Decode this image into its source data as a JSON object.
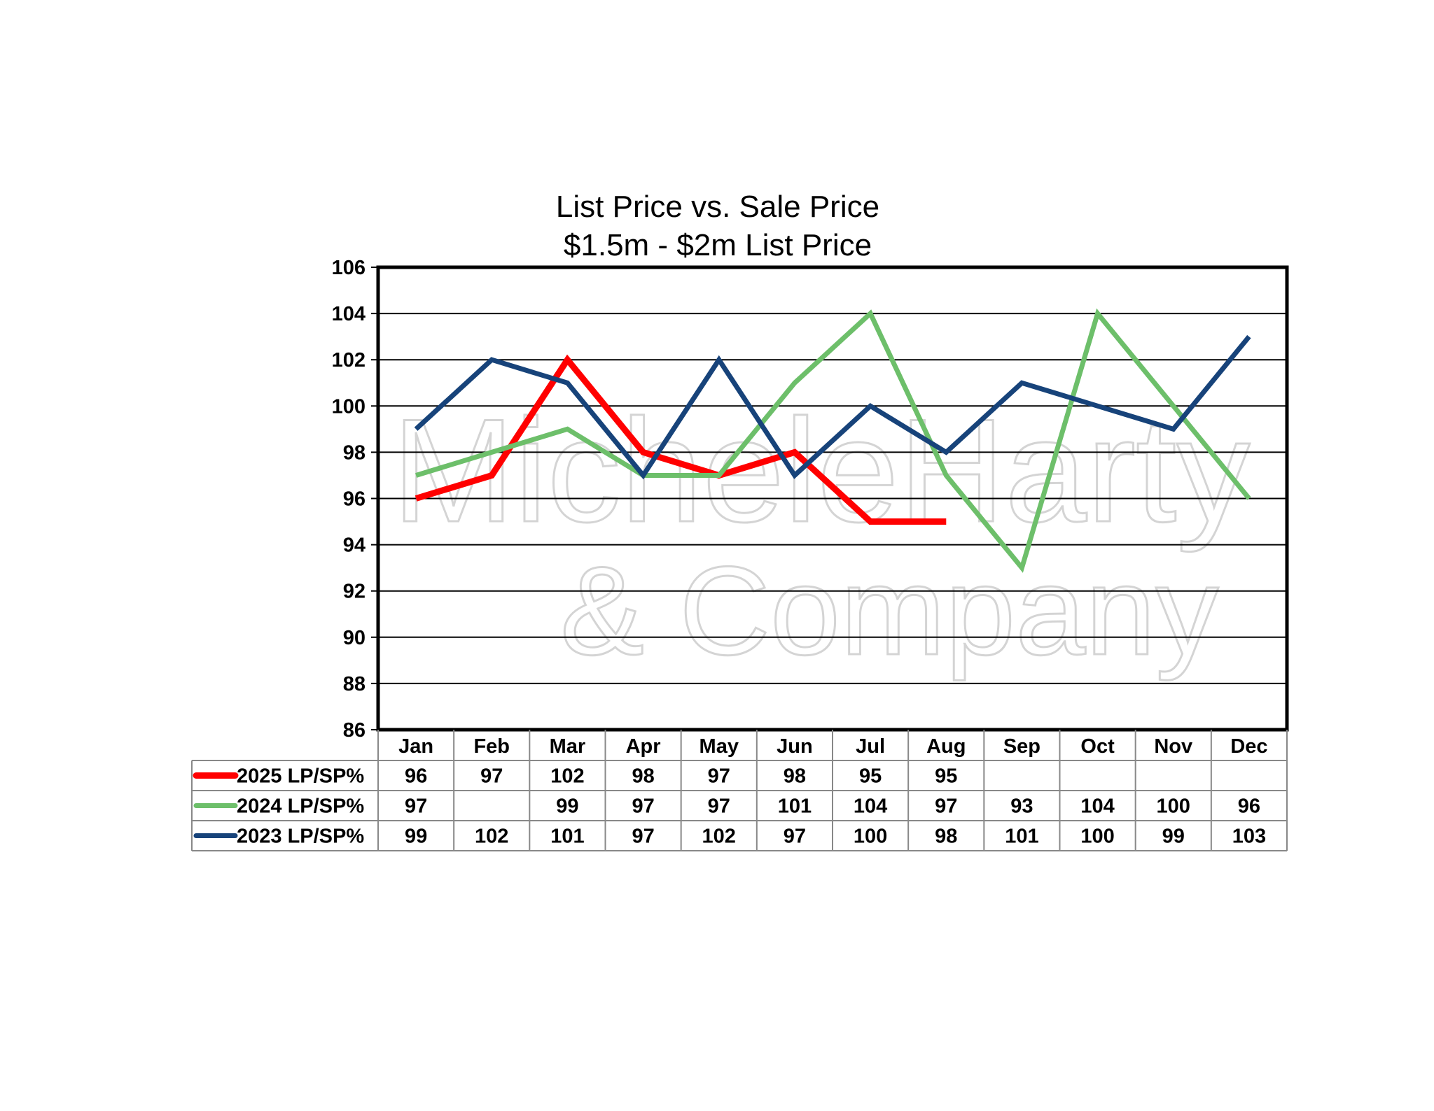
{
  "chart_data": {
    "type": "line",
    "title": "List Price vs. Sale Price",
    "subtitle": "$1.5m - $2m List Price",
    "categories": [
      "Jan",
      "Feb",
      "Mar",
      "Apr",
      "May",
      "Jun",
      "Jul",
      "Aug",
      "Sep",
      "Oct",
      "Nov",
      "Dec"
    ],
    "ylim": [
      86,
      106
    ],
    "yticks": [
      86,
      88,
      90,
      92,
      94,
      96,
      98,
      100,
      102,
      104,
      106
    ],
    "grid": true,
    "legend_position": "data-table-left",
    "series": [
      {
        "name": "2025 LP/SP%",
        "color": "#ff0000",
        "values": [
          96,
          97,
          102,
          98,
          97,
          98,
          95,
          95,
          null,
          null,
          null,
          null
        ]
      },
      {
        "name": "2024 LP/SP%",
        "color": "#6dbf6a",
        "values": [
          97,
          98,
          99,
          97,
          97,
          101,
          104,
          97,
          93,
          104,
          100,
          96
        ]
      },
      {
        "name": "2023 LP/SP%",
        "color": "#17437a",
        "values": [
          99,
          102,
          101,
          97,
          102,
          97,
          100,
          98,
          101,
          100,
          99,
          103
        ]
      }
    ],
    "table": [
      [
        "96",
        "97",
        "102",
        "98",
        "97",
        "98",
        "95",
        "95",
        "",
        "",
        "",
        ""
      ],
      [
        "97",
        "",
        "99",
        "97",
        "97",
        "101",
        "104",
        "97",
        "93",
        "104",
        "100",
        "96"
      ],
      [
        "99",
        "102",
        "101",
        "97",
        "102",
        "97",
        "100",
        "98",
        "101",
        "100",
        "99",
        "103"
      ]
    ]
  },
  "watermark": {
    "line1": "MicheleHarty",
    "line2": "& Company"
  }
}
